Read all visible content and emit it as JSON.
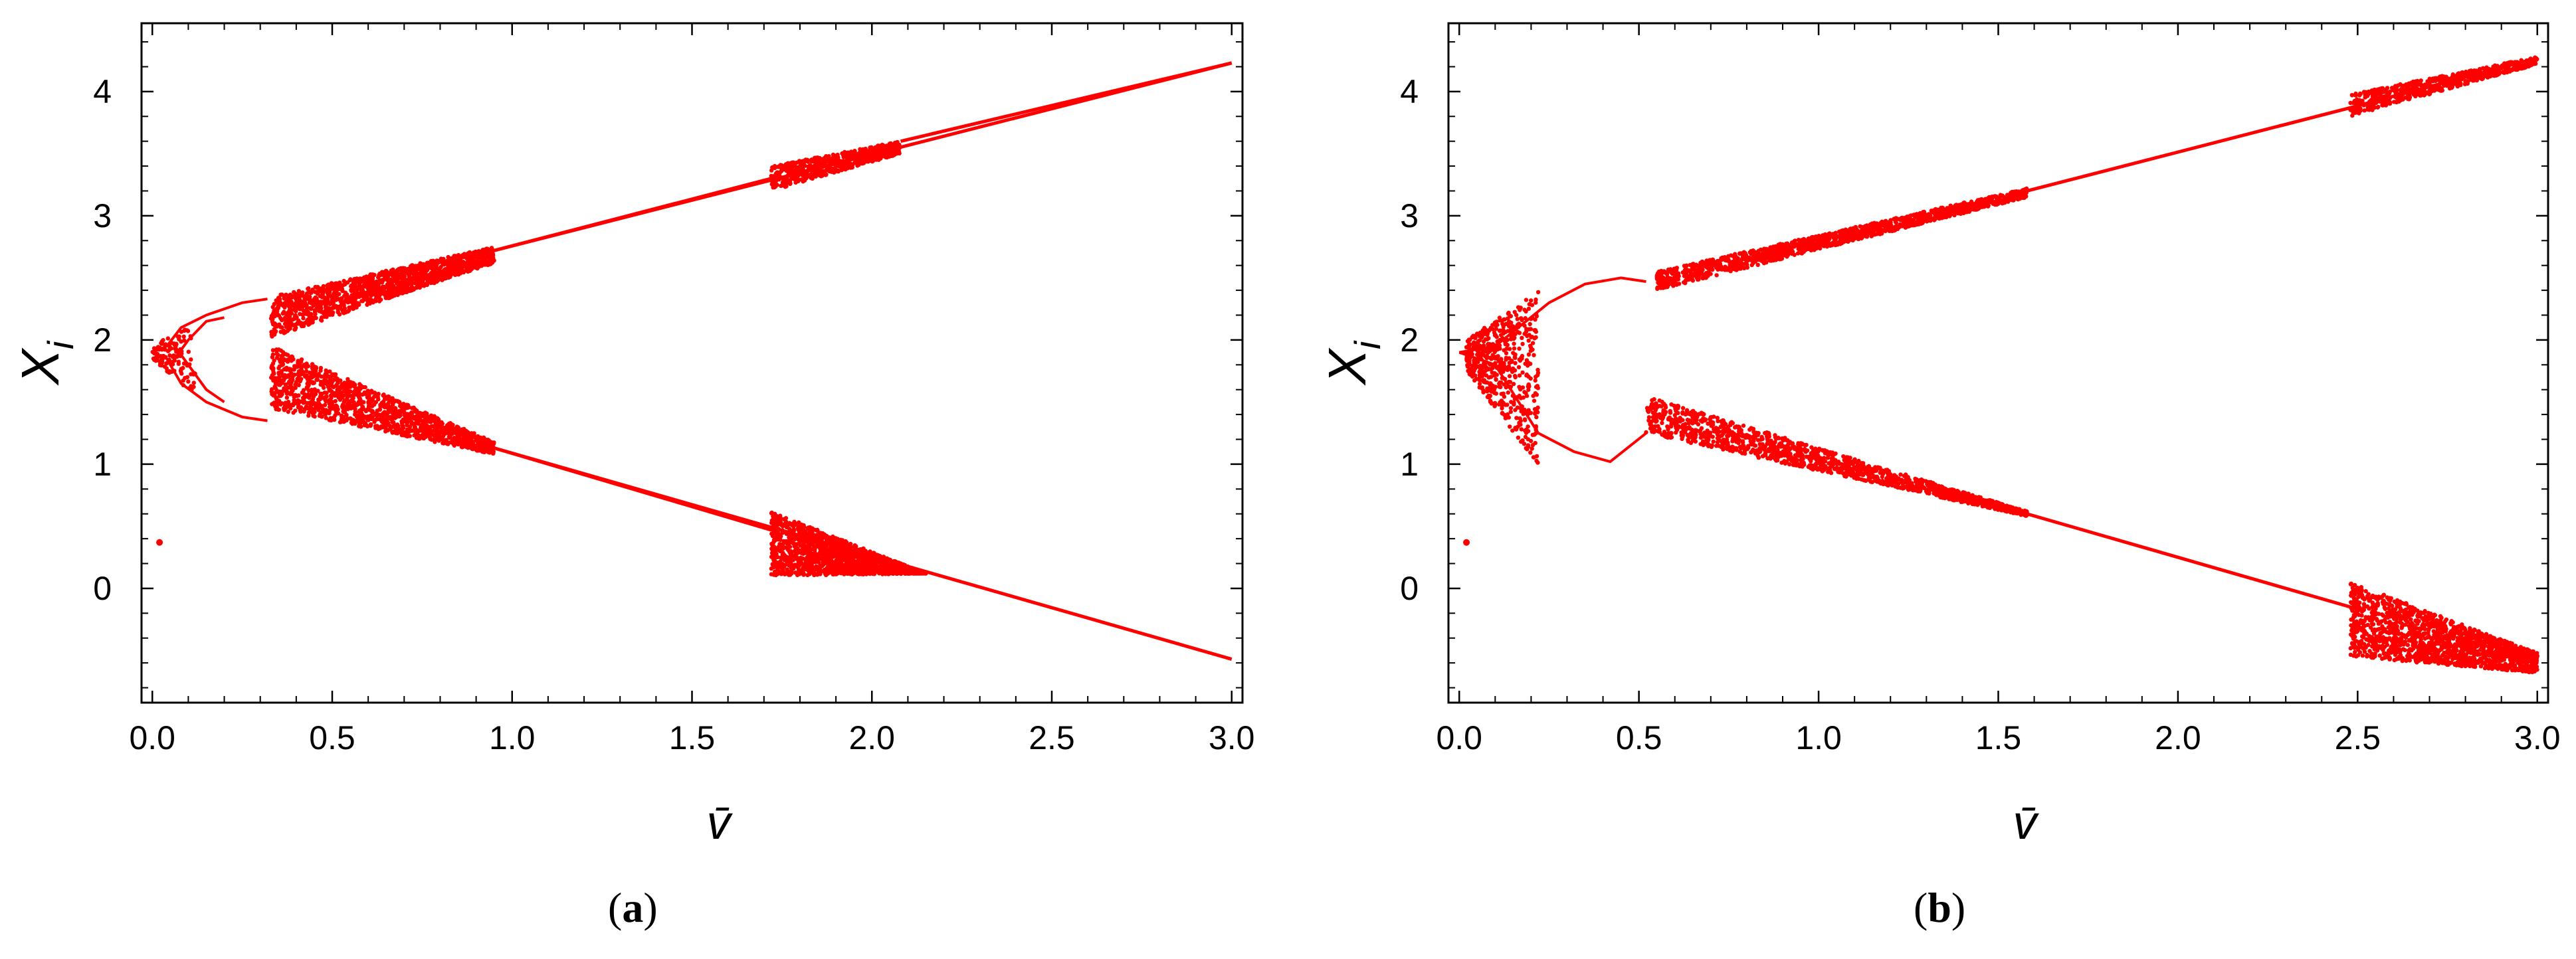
{
  "chart_data": [
    {
      "type": "scatter",
      "panel_label": "a",
      "title": "",
      "xlabel": "v̄",
      "ylabel": "X_i",
      "ylabel_main": "X",
      "ylabel_sub": "i",
      "xlim": [
        -0.03,
        3.03
      ],
      "ylim": [
        -0.92,
        4.55
      ],
      "xticks": [
        0.0,
        0.5,
        1.0,
        1.5,
        2.0,
        2.5,
        3.0
      ],
      "xtick_labels": [
        "0.0",
        "0.5",
        "1.0",
        "1.5",
        "2.0",
        "2.5",
        "3.0"
      ],
      "yticks": [
        0,
        1,
        2,
        3,
        4
      ],
      "ytick_labels": [
        "0",
        "1",
        "2",
        "3",
        "4"
      ],
      "grid": false,
      "color": "#ff0000",
      "features": {
        "isolated_point": [
          0.02,
          0.37
        ],
        "upper_branch_line": [
          [
            0.95,
            2.72
          ],
          [
            3.0,
            4.23
          ]
        ],
        "lower_branch_line": [
          [
            0.95,
            1.13
          ],
          [
            3.0,
            -0.57
          ]
        ],
        "upper_chaos_band": {
          "x": [
            0.33,
            0.95
          ],
          "y_low": [
            2.02,
            2.62
          ],
          "y_high": [
            2.35,
            2.75
          ]
        },
        "lower_chaos_band": {
          "x": [
            0.33,
            0.95
          ],
          "y_low": [
            1.45,
            1.08
          ],
          "y_high": [
            1.95,
            1.18
          ]
        },
        "upper_window_band": {
          "x": [
            1.72,
            2.08
          ],
          "y_low": [
            3.2,
            3.5
          ],
          "y_high": [
            3.4,
            3.6
          ]
        },
        "lower_window_band": {
          "x": [
            1.72,
            2.15
          ],
          "y_low": [
            0.1,
            0.12
          ],
          "y_high": [
            0.62,
            0.12
          ]
        }
      }
    },
    {
      "type": "scatter",
      "panel_label": "b",
      "title": "",
      "xlabel": "v̄",
      "ylabel": "X_i",
      "ylabel_main": "X",
      "ylabel_sub": "i",
      "xlim": [
        -0.03,
        3.03
      ],
      "ylim": [
        -0.92,
        4.55
      ],
      "xticks": [
        0.0,
        0.5,
        1.0,
        1.5,
        2.0,
        2.5,
        3.0
      ],
      "xtick_labels": [
        "0.0",
        "0.5",
        "1.0",
        "1.5",
        "2.0",
        "2.5",
        "3.0"
      ],
      "yticks": [
        0,
        1,
        2,
        3,
        4
      ],
      "ytick_labels": [
        "0",
        "1",
        "2",
        "3",
        "4"
      ],
      "grid": false,
      "color": "#ff0000",
      "features": {
        "isolated_point": [
          0.02,
          0.37
        ],
        "upper_branch_line": [
          [
            1.58,
            3.2
          ],
          [
            2.48,
            3.87
          ]
        ],
        "lower_branch_line": [
          [
            1.58,
            0.6
          ],
          [
            2.48,
            -0.15
          ]
        ],
        "upper_chaos_band": {
          "x": [
            0.55,
            1.58
          ],
          "y_low": [
            2.4,
            3.15
          ],
          "y_high": [
            2.55,
            3.22
          ]
        },
        "lower_chaos_band": {
          "x": [
            0.52,
            1.58
          ],
          "y_low": [
            1.25,
            0.58
          ],
          "y_high": [
            1.55,
            0.62
          ]
        },
        "upper_window_band": {
          "x": [
            2.48,
            3.0
          ],
          "y_low": [
            3.8,
            4.22
          ],
          "y_high": [
            3.98,
            4.28
          ]
        },
        "lower_window_band": {
          "x": [
            2.48,
            3.0
          ],
          "y_low": [
            -0.55,
            -0.68
          ],
          "y_high": [
            0.05,
            -0.52
          ]
        }
      }
    }
  ],
  "captions": {
    "a_open": "(",
    "a_label": "a",
    "a_close": ")",
    "b_open": "(",
    "b_label": "b",
    "b_close": ")"
  }
}
